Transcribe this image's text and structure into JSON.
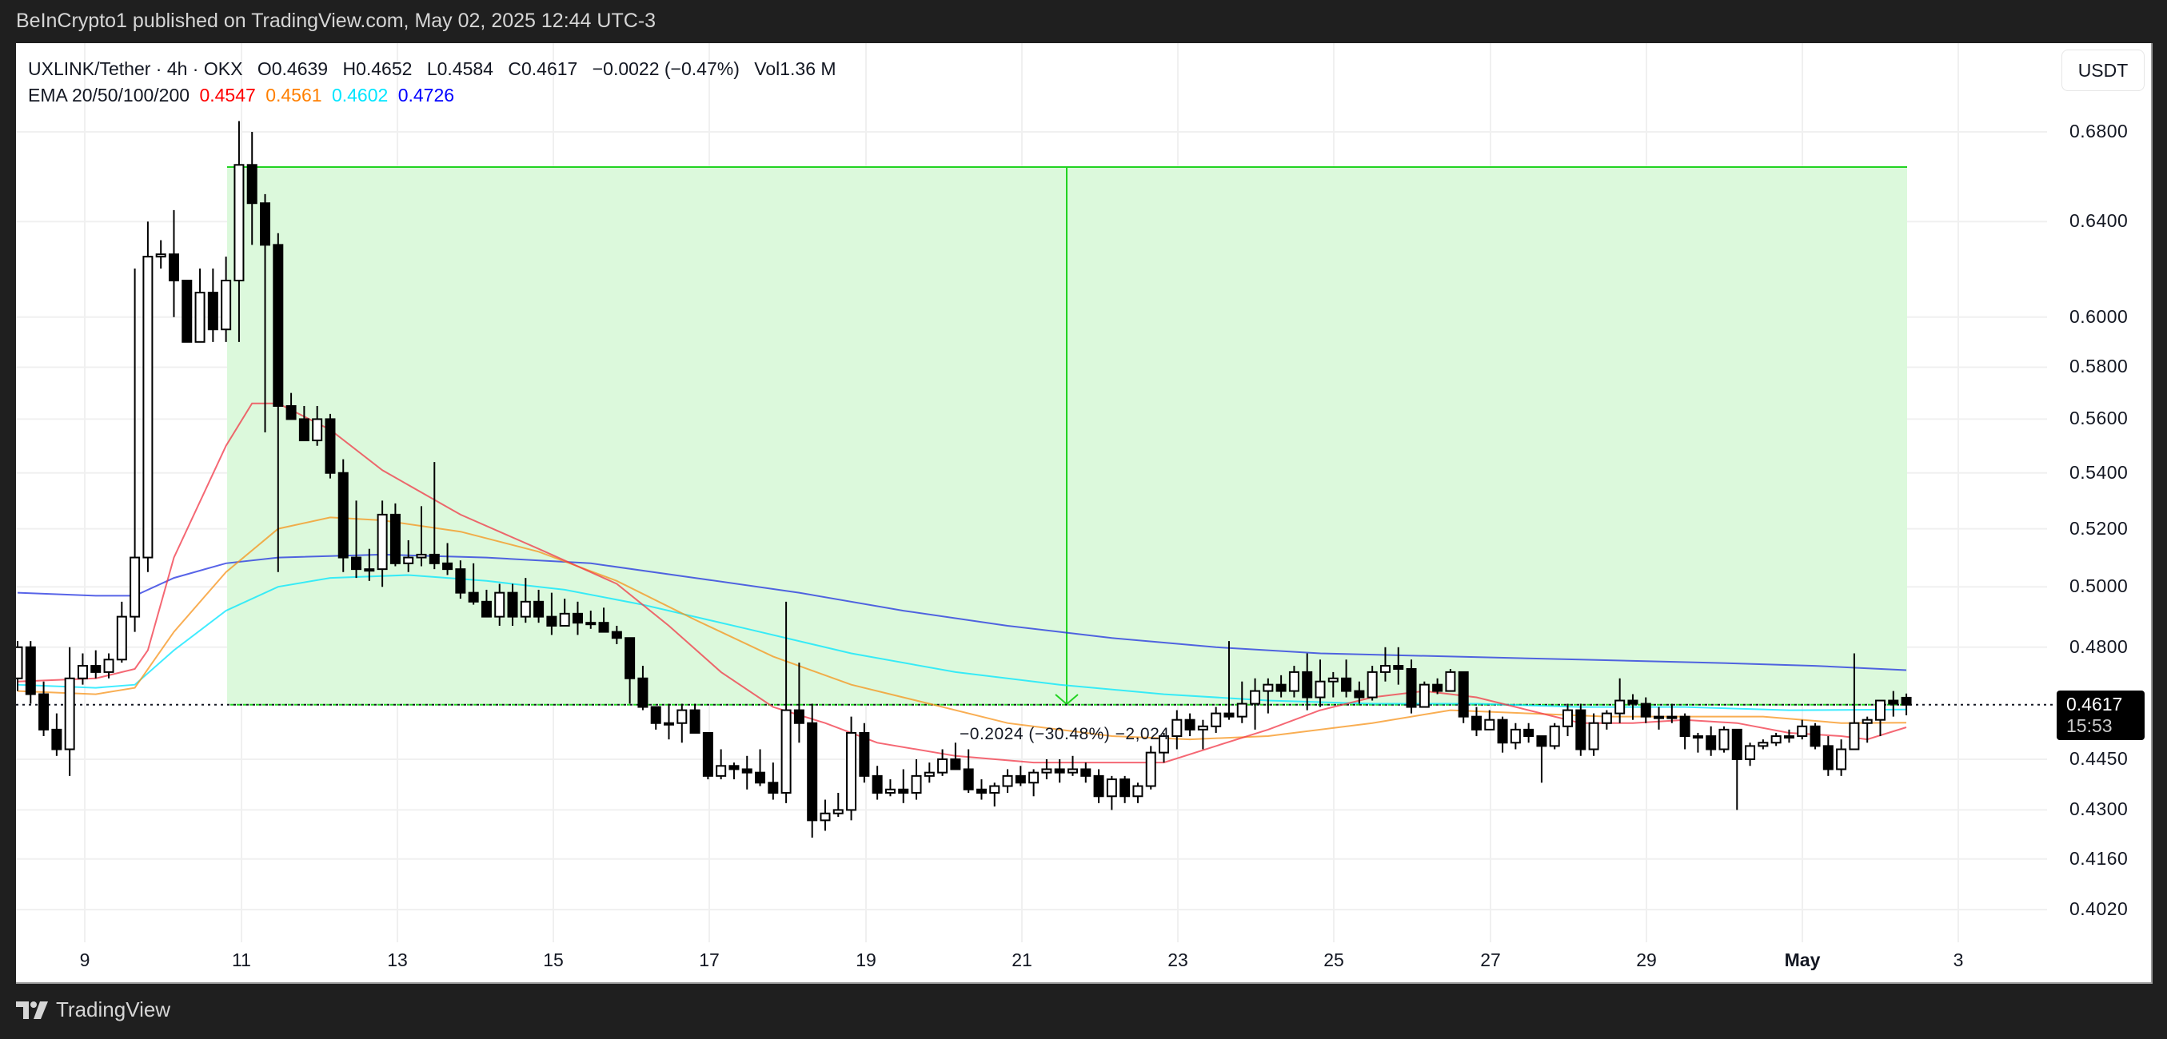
{
  "header": {
    "published": "BeInCrypto1 published on TradingView.com, May 02, 2025 12:44 UTC-3"
  },
  "legend": {
    "symbol": "UXLINK/Tether · 4h · OKX",
    "open": "O0.4639",
    "high": "H0.4652",
    "low": "L0.4584",
    "close": "C0.4617",
    "change": "−0.0022 (−0.47%)",
    "volume": "Vol1.36 M",
    "ema_label": "EMA 20/50/100/200",
    "ema20": "0.4547",
    "ema50": "0.4561",
    "ema100": "0.4602",
    "ema200": "0.4726"
  },
  "currency_button": "USDT",
  "last_price": {
    "price": "0.4617",
    "countdown": "15:53"
  },
  "measure_label": "−0.2024 (−30.48%) −2,024",
  "footer": {
    "brand": "TradingView"
  },
  "colors": {
    "ema20": "#f23645",
    "ema50": "#f7931a",
    "ema100": "#00e5ff",
    "ema200": "#2030e0",
    "measure_fill": "#dcf9dc",
    "measure_line": "#22d322"
  },
  "chart_data": {
    "type": "candlestick",
    "title": "UXLINK/Tether · 4h · OKX",
    "xlabel": "",
    "ylabel": "USDT",
    "y_scale": "log",
    "ylim": [
      0.392,
      0.7
    ],
    "grid": true,
    "y_ticks": [
      "0.6800",
      "0.6400",
      "0.6000",
      "0.5800",
      "0.5600",
      "0.5400",
      "0.5200",
      "0.5000",
      "0.4800",
      "0.4450",
      "0.4300",
      "0.4160",
      "0.4020"
    ],
    "x_ticks": [
      "9",
      "11",
      "13",
      "15",
      "17",
      "19",
      "21",
      "23",
      "25",
      "27",
      "29",
      "May",
      "3"
    ],
    "legend": [
      "EMA 20 0.4547",
      "EMA 50 0.4561",
      "EMA 100 0.4602",
      "EMA 200 0.4726"
    ],
    "last_price": 0.4617,
    "annotations": [
      {
        "type": "price_range",
        "from": 0.6641,
        "to": 0.4617,
        "label": "−0.2024 (−30.48%) −2,024"
      }
    ],
    "candles": [
      [
        0.47,
        0.482,
        0.466,
        0.48
      ],
      [
        0.48,
        0.482,
        0.462,
        0.465
      ],
      [
        0.465,
        0.469,
        0.452,
        0.454
      ],
      [
        0.454,
        0.459,
        0.446,
        0.448
      ],
      [
        0.448,
        0.48,
        0.44,
        0.47
      ],
      [
        0.47,
        0.478,
        0.468,
        0.474
      ],
      [
        0.474,
        0.479,
        0.47,
        0.472
      ],
      [
        0.472,
        0.478,
        0.47,
        0.476
      ],
      [
        0.476,
        0.495,
        0.475,
        0.49
      ],
      [
        0.49,
        0.62,
        0.485,
        0.51
      ],
      [
        0.51,
        0.64,
        0.505,
        0.625
      ],
      [
        0.625,
        0.632,
        0.62,
        0.626
      ],
      [
        0.626,
        0.645,
        0.6,
        0.615
      ],
      [
        0.615,
        0.615,
        0.59,
        0.59
      ],
      [
        0.59,
        0.62,
        0.595,
        0.61
      ],
      [
        0.61,
        0.62,
        0.59,
        0.595
      ],
      [
        0.595,
        0.625,
        0.59,
        0.615
      ],
      [
        0.615,
        0.685,
        0.59,
        0.665
      ],
      [
        0.665,
        0.68,
        0.63,
        0.648
      ],
      [
        0.648,
        0.652,
        0.555,
        0.63
      ],
      [
        0.63,
        0.635,
        0.505,
        0.565
      ],
      [
        0.565,
        0.57,
        0.56,
        0.56
      ],
      [
        0.56,
        0.565,
        0.552,
        0.552
      ],
      [
        0.552,
        0.565,
        0.55,
        0.56
      ],
      [
        0.56,
        0.562,
        0.538,
        0.54
      ],
      [
        0.54,
        0.545,
        0.505,
        0.51
      ],
      [
        0.51,
        0.53,
        0.503,
        0.506
      ],
      [
        0.506,
        0.513,
        0.502,
        0.506
      ],
      [
        0.506,
        0.53,
        0.5,
        0.525
      ],
      [
        0.525,
        0.529,
        0.507,
        0.508
      ],
      [
        0.508,
        0.516,
        0.505,
        0.51
      ],
      [
        0.51,
        0.528,
        0.507,
        0.511
      ],
      [
        0.511,
        0.544,
        0.506,
        0.508
      ],
      [
        0.508,
        0.515,
        0.504,
        0.506
      ],
      [
        0.506,
        0.509,
        0.496,
        0.498
      ],
      [
        0.498,
        0.508,
        0.494,
        0.495
      ],
      [
        0.495,
        0.499,
        0.49,
        0.49
      ],
      [
        0.49,
        0.501,
        0.487,
        0.498
      ],
      [
        0.498,
        0.501,
        0.487,
        0.49
      ],
      [
        0.49,
        0.503,
        0.488,
        0.495
      ],
      [
        0.495,
        0.499,
        0.488,
        0.49
      ],
      [
        0.49,
        0.498,
        0.484,
        0.487
      ],
      [
        0.487,
        0.496,
        0.487,
        0.491
      ],
      [
        0.491,
        0.495,
        0.484,
        0.488
      ],
      [
        0.488,
        0.492,
        0.486,
        0.488
      ],
      [
        0.488,
        0.493,
        0.485,
        0.485
      ],
      [
        0.485,
        0.487,
        0.481,
        0.483
      ],
      [
        0.483,
        0.483,
        0.462,
        0.47
      ],
      [
        0.47,
        0.474,
        0.46,
        0.461
      ],
      [
        0.461,
        0.461,
        0.454,
        0.456
      ],
      [
        0.456,
        0.462,
        0.451,
        0.456
      ],
      [
        0.456,
        0.462,
        0.45,
        0.46
      ],
      [
        0.46,
        0.462,
        0.456,
        0.453
      ],
      [
        0.453,
        0.453,
        0.439,
        0.44
      ],
      [
        0.44,
        0.448,
        0.439,
        0.443
      ],
      [
        0.443,
        0.444,
        0.439,
        0.442
      ],
      [
        0.442,
        0.446,
        0.436,
        0.441
      ],
      [
        0.441,
        0.448,
        0.437,
        0.438
      ],
      [
        0.438,
        0.444,
        0.433,
        0.435
      ],
      [
        0.435,
        0.495,
        0.432,
        0.46
      ],
      [
        0.46,
        0.475,
        0.45,
        0.456
      ],
      [
        0.456,
        0.462,
        0.422,
        0.427
      ],
      [
        0.427,
        0.433,
        0.424,
        0.429
      ],
      [
        0.429,
        0.435,
        0.428,
        0.43
      ],
      [
        0.43,
        0.458,
        0.427,
        0.453
      ],
      [
        0.453,
        0.456,
        0.438,
        0.44
      ],
      [
        0.44,
        0.443,
        0.433,
        0.435
      ],
      [
        0.435,
        0.439,
        0.434,
        0.436
      ],
      [
        0.436,
        0.442,
        0.432,
        0.435
      ],
      [
        0.435,
        0.445,
        0.433,
        0.44
      ],
      [
        0.44,
        0.444,
        0.438,
        0.441
      ],
      [
        0.441,
        0.448,
        0.44,
        0.445
      ],
      [
        0.445,
        0.45,
        0.442,
        0.442
      ],
      [
        0.442,
        0.448,
        0.435,
        0.436
      ],
      [
        0.436,
        0.439,
        0.433,
        0.435
      ],
      [
        0.435,
        0.438,
        0.431,
        0.437
      ],
      [
        0.437,
        0.442,
        0.435,
        0.44
      ],
      [
        0.44,
        0.443,
        0.437,
        0.438
      ],
      [
        0.438,
        0.442,
        0.434,
        0.441
      ],
      [
        0.441,
        0.445,
        0.439,
        0.442
      ],
      [
        0.442,
        0.445,
        0.438,
        0.441
      ],
      [
        0.441,
        0.446,
        0.44,
        0.442
      ],
      [
        0.442,
        0.444,
        0.438,
        0.44
      ],
      [
        0.44,
        0.442,
        0.432,
        0.434
      ],
      [
        0.434,
        0.44,
        0.43,
        0.439
      ],
      [
        0.439,
        0.44,
        0.432,
        0.434
      ],
      [
        0.434,
        0.438,
        0.432,
        0.437
      ],
      [
        0.437,
        0.449,
        0.436,
        0.447
      ],
      [
        0.447,
        0.453,
        0.444,
        0.452
      ],
      [
        0.452,
        0.46,
        0.448,
        0.457
      ],
      [
        0.457,
        0.459,
        0.452,
        0.454
      ],
      [
        0.454,
        0.457,
        0.448,
        0.455
      ],
      [
        0.455,
        0.461,
        0.453,
        0.459
      ],
      [
        0.459,
        0.482,
        0.457,
        0.458
      ],
      [
        0.458,
        0.469,
        0.456,
        0.462
      ],
      [
        0.462,
        0.47,
        0.454,
        0.466
      ],
      [
        0.466,
        0.47,
        0.459,
        0.468
      ],
      [
        0.468,
        0.471,
        0.464,
        0.466
      ],
      [
        0.466,
        0.474,
        0.464,
        0.472
      ],
      [
        0.472,
        0.478,
        0.46,
        0.464
      ],
      [
        0.464,
        0.476,
        0.461,
        0.469
      ],
      [
        0.469,
        0.472,
        0.464,
        0.47
      ],
      [
        0.47,
        0.476,
        0.464,
        0.466
      ],
      [
        0.466,
        0.469,
        0.462,
        0.464
      ],
      [
        0.464,
        0.474,
        0.463,
        0.472
      ],
      [
        0.472,
        0.48,
        0.469,
        0.474
      ],
      [
        0.474,
        0.48,
        0.468,
        0.473
      ],
      [
        0.473,
        0.476,
        0.459,
        0.461
      ],
      [
        0.461,
        0.469,
        0.462,
        0.468
      ],
      [
        0.468,
        0.47,
        0.465,
        0.466
      ],
      [
        0.466,
        0.473,
        0.466,
        0.472
      ],
      [
        0.472,
        0.472,
        0.456,
        0.458
      ],
      [
        0.458,
        0.461,
        0.452,
        0.454
      ],
      [
        0.454,
        0.46,
        0.454,
        0.457
      ],
      [
        0.457,
        0.458,
        0.447,
        0.45
      ],
      [
        0.45,
        0.456,
        0.448,
        0.454
      ],
      [
        0.454,
        0.456,
        0.45,
        0.452
      ],
      [
        0.452,
        0.452,
        0.438,
        0.449
      ],
      [
        0.449,
        0.456,
        0.448,
        0.455
      ],
      [
        0.455,
        0.462,
        0.452,
        0.46
      ],
      [
        0.46,
        0.462,
        0.446,
        0.448
      ],
      [
        0.448,
        0.459,
        0.446,
        0.456
      ],
      [
        0.456,
        0.46,
        0.454,
        0.459
      ],
      [
        0.459,
        0.47,
        0.456,
        0.463
      ],
      [
        0.463,
        0.465,
        0.457,
        0.462
      ],
      [
        0.462,
        0.464,
        0.456,
        0.458
      ],
      [
        0.458,
        0.461,
        0.454,
        0.458
      ],
      [
        0.458,
        0.462,
        0.456,
        0.458
      ],
      [
        0.458,
        0.459,
        0.448,
        0.452
      ],
      [
        0.452,
        0.453,
        0.447,
        0.452
      ],
      [
        0.452,
        0.455,
        0.446,
        0.448
      ],
      [
        0.448,
        0.455,
        0.447,
        0.454
      ],
      [
        0.454,
        0.454,
        0.43,
        0.445
      ],
      [
        0.445,
        0.45,
        0.443,
        0.449
      ],
      [
        0.449,
        0.451,
        0.448,
        0.45
      ],
      [
        0.45,
        0.453,
        0.449,
        0.452
      ],
      [
        0.452,
        0.454,
        0.45,
        0.452
      ],
      [
        0.452,
        0.457,
        0.451,
        0.455
      ],
      [
        0.455,
        0.456,
        0.448,
        0.449
      ],
      [
        0.449,
        0.452,
        0.44,
        0.442
      ],
      [
        0.442,
        0.451,
        0.44,
        0.448
      ],
      [
        0.448,
        0.478,
        0.448,
        0.456
      ],
      [
        0.456,
        0.458,
        0.45,
        0.457
      ],
      [
        0.457,
        0.463,
        0.452,
        0.463
      ],
      [
        0.463,
        0.466,
        0.458,
        0.462
      ],
      [
        0.4639,
        0.4652,
        0.4584,
        0.4617
      ]
    ],
    "ema": {
      "ema20": [
        [
          0,
          0.469
        ],
        [
          6,
          0.47
        ],
        [
          9,
          0.473
        ],
        [
          10,
          0.479
        ],
        [
          12,
          0.51
        ],
        [
          16,
          0.55
        ],
        [
          18,
          0.566
        ],
        [
          20,
          0.566
        ],
        [
          24,
          0.556
        ],
        [
          28,
          0.541
        ],
        [
          34,
          0.525
        ],
        [
          40,
          0.513
        ],
        [
          46,
          0.501
        ],
        [
          50,
          0.487
        ],
        [
          54,
          0.472
        ],
        [
          58,
          0.461
        ],
        [
          62,
          0.456
        ],
        [
          66,
          0.45
        ],
        [
          72,
          0.446
        ],
        [
          78,
          0.444
        ],
        [
          84,
          0.444
        ],
        [
          88,
          0.444
        ],
        [
          92,
          0.449
        ],
        [
          96,
          0.454
        ],
        [
          100,
          0.46
        ],
        [
          104,
          0.464
        ],
        [
          108,
          0.466
        ],
        [
          112,
          0.464
        ],
        [
          116,
          0.46
        ],
        [
          120,
          0.456
        ],
        [
          124,
          0.456
        ],
        [
          128,
          0.457
        ],
        [
          132,
          0.456
        ],
        [
          136,
          0.453
        ],
        [
          140,
          0.452
        ],
        [
          142,
          0.451
        ],
        [
          145,
          0.4547
        ]
      ],
      "ema50": [
        [
          0,
          0.466
        ],
        [
          6,
          0.465
        ],
        [
          9,
          0.467
        ],
        [
          12,
          0.485
        ],
        [
          16,
          0.505
        ],
        [
          20,
          0.52
        ],
        [
          24,
          0.524
        ],
        [
          28,
          0.523
        ],
        [
          34,
          0.519
        ],
        [
          40,
          0.512
        ],
        [
          46,
          0.502
        ],
        [
          52,
          0.489
        ],
        [
          58,
          0.477
        ],
        [
          64,
          0.468
        ],
        [
          70,
          0.462
        ],
        [
          76,
          0.456
        ],
        [
          84,
          0.452
        ],
        [
          90,
          0.451
        ],
        [
          96,
          0.452
        ],
        [
          104,
          0.456
        ],
        [
          110,
          0.46
        ],
        [
          116,
          0.459
        ],
        [
          122,
          0.458
        ],
        [
          128,
          0.458
        ],
        [
          134,
          0.458
        ],
        [
          140,
          0.456
        ],
        [
          145,
          0.4561
        ]
      ],
      "ema100": [
        [
          0,
          0.468
        ],
        [
          6,
          0.467
        ],
        [
          9,
          0.468
        ],
        [
          12,
          0.479
        ],
        [
          16,
          0.492
        ],
        [
          20,
          0.5
        ],
        [
          24,
          0.503
        ],
        [
          30,
          0.504
        ],
        [
          36,
          0.502
        ],
        [
          42,
          0.499
        ],
        [
          48,
          0.494
        ],
        [
          56,
          0.486
        ],
        [
          64,
          0.478
        ],
        [
          72,
          0.472
        ],
        [
          80,
          0.468
        ],
        [
          88,
          0.465
        ],
        [
          96,
          0.463
        ],
        [
          104,
          0.462
        ],
        [
          112,
          0.462
        ],
        [
          120,
          0.461
        ],
        [
          128,
          0.461
        ],
        [
          136,
          0.46
        ],
        [
          145,
          0.4602
        ]
      ],
      "ema200": [
        [
          0,
          0.498
        ],
        [
          6,
          0.497
        ],
        [
          9,
          0.497
        ],
        [
          12,
          0.503
        ],
        [
          16,
          0.508
        ],
        [
          20,
          0.51
        ],
        [
          28,
          0.511
        ],
        [
          36,
          0.51
        ],
        [
          44,
          0.508
        ],
        [
          52,
          0.503
        ],
        [
          60,
          0.498
        ],
        [
          68,
          0.492
        ],
        [
          76,
          0.487
        ],
        [
          84,
          0.483
        ],
        [
          92,
          0.48
        ],
        [
          100,
          0.478
        ],
        [
          110,
          0.477
        ],
        [
          120,
          0.476
        ],
        [
          130,
          0.475
        ],
        [
          138,
          0.474
        ],
        [
          145,
          0.4726
        ]
      ]
    }
  }
}
